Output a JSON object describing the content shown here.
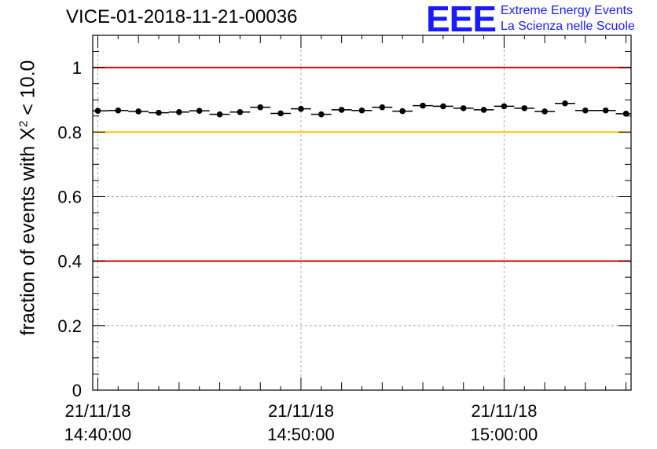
{
  "chart_data": {
    "type": "scatter",
    "title": "VICE-01-2018-11-21-00036",
    "ylabel_prefix": "fraction of events with X",
    "ylabel_sup": "2",
    "ylabel_suffix": " < 10.0",
    "xlabel": "",
    "ylim": [
      0,
      1.1
    ],
    "yticks": [
      0,
      0.2,
      0.4,
      0.6,
      0.8,
      1
    ],
    "ytick_labels": [
      "0",
      "0.2",
      "0.4",
      "0.6",
      "0.8",
      "1"
    ],
    "xlim_minutes": [
      -0.25,
      26.25
    ],
    "xticks_minutes": [
      0,
      10,
      20
    ],
    "xtick_labels": [
      [
        "21/11/18",
        "14:40:00"
      ],
      [
        "21/11/18",
        "14:50:00"
      ],
      [
        "21/11/18",
        "15:00:00"
      ]
    ],
    "grid": true,
    "reference_lines": [
      {
        "value": 1.0,
        "color": "#e00000"
      },
      {
        "value": 0.8,
        "color": "#ffc400"
      },
      {
        "value": 0.4,
        "color": "#e00000"
      }
    ],
    "bin_width_minutes": 1,
    "x_minutes": [
      0,
      1,
      2,
      3,
      4,
      5,
      6,
      7,
      8,
      9,
      10,
      11,
      12,
      13,
      14,
      15,
      16,
      17,
      18,
      19,
      20,
      21,
      22,
      23,
      24,
      25,
      26
    ],
    "values": [
      0.866,
      0.867,
      0.864,
      0.86,
      0.862,
      0.866,
      0.855,
      0.862,
      0.877,
      0.858,
      0.872,
      0.855,
      0.869,
      0.867,
      0.877,
      0.865,
      0.882,
      0.88,
      0.874,
      0.869,
      0.88,
      0.874,
      0.864,
      0.889,
      0.867,
      0.867,
      0.857
    ]
  },
  "logo": {
    "mark": "EEE",
    "line1": "Extreme Energy Events",
    "line2": "La Scienza nelle Scuole"
  }
}
